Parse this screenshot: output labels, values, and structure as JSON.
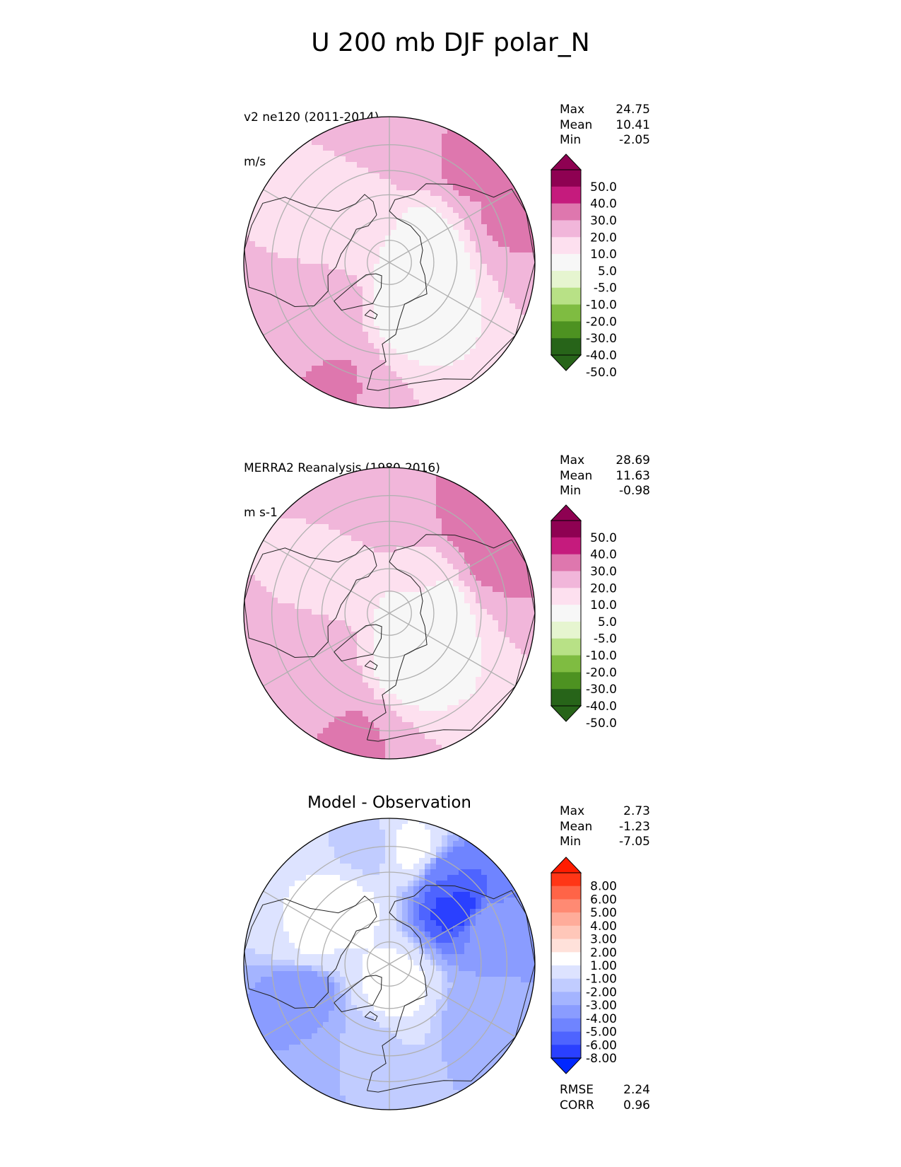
{
  "title": "U 200 mb DJF polar_N",
  "chart_data": [
    {
      "type": "heatmap",
      "projection": "north-polar-stereographic",
      "title_line1": "v2 ne120 (2011-2014)",
      "title_line2": "m/s",
      "stats": [
        {
          "label": "Max",
          "value": "24.75"
        },
        {
          "label": "Mean",
          "value": "10.41"
        },
        {
          "label": "Min",
          "value": "-2.05"
        }
      ],
      "colorbar": {
        "extend": "both",
        "ticks": [
          "50.0",
          "40.0",
          "30.0",
          "20.0",
          "10.0",
          "5.0",
          "-5.0",
          "-10.0",
          "-20.0",
          "-30.0",
          "-40.0",
          "-50.0"
        ],
        "colors": [
          "#8e0152",
          "#c51b7d",
          "#de77ae",
          "#f1b6da",
          "#fde0ef",
          "#f7f7f7",
          "#e6f5d0",
          "#b8e186",
          "#7fbc41",
          "#4d9221",
          "#276419"
        ]
      },
      "field": [
        {
          "lon": 60,
          "lat": 78,
          "value": 2
        },
        {
          "lon": 100,
          "lat": 72,
          "value": 1
        },
        {
          "lon": 20,
          "lat": 66,
          "value": 3
        },
        {
          "lon": 140,
          "lat": 70,
          "value": 4
        },
        {
          "lon": -120,
          "lat": 68,
          "value": 7
        },
        {
          "lon": -170,
          "lat": 62,
          "value": 8
        },
        {
          "lon": -60,
          "lat": 60,
          "value": 12
        },
        {
          "lon": 170,
          "lat": 45,
          "value": 16
        },
        {
          "lon": -40,
          "lat": 40,
          "value": 15
        },
        {
          "lon": 140,
          "lat": 36,
          "value": 24
        },
        {
          "lon": -30,
          "lat": 36,
          "value": 22
        },
        {
          "lon": 110,
          "lat": 36,
          "value": 21
        }
      ]
    },
    {
      "type": "heatmap",
      "projection": "north-polar-stereographic",
      "title_line1": "MERRA2 Reanalysis (1980-2016)",
      "title_line2": "m s-1",
      "stats": [
        {
          "label": "Max",
          "value": "28.69"
        },
        {
          "label": "Mean",
          "value": "11.63"
        },
        {
          "label": "Min",
          "value": "-0.98"
        }
      ],
      "colorbar": {
        "extend": "both",
        "ticks": [
          "50.0",
          "40.0",
          "30.0",
          "20.0",
          "10.0",
          "5.0",
          "-5.0",
          "-10.0",
          "-20.0",
          "-30.0",
          "-40.0",
          "-50.0"
        ],
        "colors": [
          "#8e0152",
          "#c51b7d",
          "#de77ae",
          "#f1b6da",
          "#fde0ef",
          "#f7f7f7",
          "#e6f5d0",
          "#b8e186",
          "#7fbc41",
          "#4d9221",
          "#276419"
        ]
      },
      "field": [
        {
          "lon": 60,
          "lat": 80,
          "value": 2
        },
        {
          "lon": 100,
          "lat": 72,
          "value": 1
        },
        {
          "lon": 20,
          "lat": 66,
          "value": 3
        },
        {
          "lon": 140,
          "lat": 70,
          "value": 6
        },
        {
          "lon": -120,
          "lat": 66,
          "value": 8
        },
        {
          "lon": -170,
          "lat": 60,
          "value": 10
        },
        {
          "lon": -60,
          "lat": 58,
          "value": 12
        },
        {
          "lon": 170,
          "lat": 45,
          "value": 18
        },
        {
          "lon": -40,
          "lat": 40,
          "value": 16
        },
        {
          "lon": 140,
          "lat": 34,
          "value": 27
        },
        {
          "lon": 120,
          "lat": 38,
          "value": 24
        },
        {
          "lon": -20,
          "lat": 34,
          "value": 22
        }
      ]
    },
    {
      "type": "heatmap",
      "projection": "north-polar-stereographic",
      "title": "Model - Observation",
      "stats": [
        {
          "label": "Max",
          "value": "2.73"
        },
        {
          "label": "Mean",
          "value": "-1.23"
        },
        {
          "label": "Min",
          "value": "-7.05"
        }
      ],
      "colorbar": {
        "extend": "both",
        "ticks": [
          "8.00",
          "6.00",
          "5.00",
          "4.00",
          "3.00",
          "2.00",
          "1.00",
          "-1.00",
          "-2.00",
          "-3.00",
          "-4.00",
          "-5.00",
          "-6.00",
          "-8.00"
        ],
        "colors": [
          "#ff3616",
          "#ff6447",
          "#ff8a73",
          "#ffac9a",
          "#ffc7b9",
          "#ffe1da",
          "#ffffff",
          "#dde3ff",
          "#c1ccff",
          "#a4b4ff",
          "#8a9cff",
          "#6f84ff",
          "#4e64ff",
          "#2a40ff"
        ],
        "over_color": "#ff1c00",
        "under_color": "#0027ff"
      },
      "field": [
        {
          "lon": 130,
          "lat": 52,
          "value": -6.5
        },
        {
          "lon": 145,
          "lat": 45,
          "value": -5.0
        },
        {
          "lon": 110,
          "lat": 45,
          "value": -3.5
        },
        {
          "lon": -70,
          "lat": 50,
          "value": -4.0
        },
        {
          "lon": -45,
          "lat": 45,
          "value": -3.0
        },
        {
          "lon": -140,
          "lat": 58,
          "value": 1.8
        },
        {
          "lon": -110,
          "lat": 55,
          "value": 1.2
        },
        {
          "lon": 10,
          "lat": 80,
          "value": 1.8
        },
        {
          "lon": 170,
          "lat": 40,
          "value": 1.5
        },
        {
          "lon": 60,
          "lat": 45,
          "value": -2.5
        },
        {
          "lon": -20,
          "lat": 52,
          "value": -1.6
        },
        {
          "lon": -170,
          "lat": 40,
          "value": -1.5
        }
      ],
      "rmse": {
        "label": "RMSE",
        "value": "2.24"
      },
      "corr": {
        "label": "CORR",
        "value": "0.96"
      }
    }
  ]
}
